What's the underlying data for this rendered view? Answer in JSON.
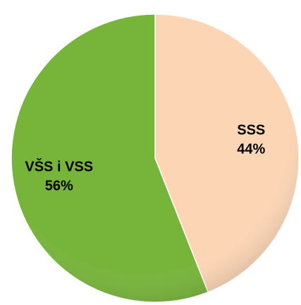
{
  "chart_data": {
    "type": "pie",
    "categories": [
      "SSS",
      "VŠS i VSS"
    ],
    "values": [
      44,
      56
    ],
    "value_labels": [
      "44%",
      "56%"
    ],
    "colors": [
      "#fcd5b4",
      "#77b43a"
    ]
  }
}
